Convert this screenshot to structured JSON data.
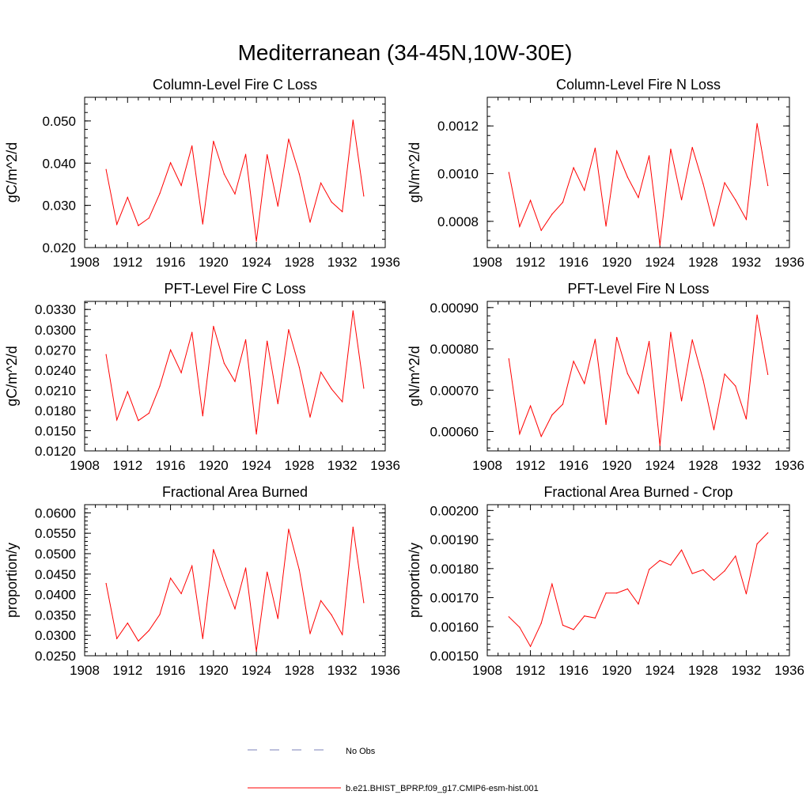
{
  "figure": {
    "title": "Mediterranean (34-45N,10W-30E)"
  },
  "legend": {
    "entries": [
      {
        "label": "No Obs",
        "color": "#7b80b8",
        "style": "dashed"
      },
      {
        "label": "b.e21.BHIST_BPRP.f09_g17.CMIP6-esm-hist.001",
        "color": "#ff0000",
        "style": "solid"
      }
    ]
  },
  "chart_data": [
    {
      "type": "line",
      "title": "Column-Level Fire C Loss",
      "ylabel": "gC/m^2/d",
      "xlim": [
        1908,
        1936
      ],
      "ylim": [
        0.02,
        0.0556
      ],
      "x_ticks": [
        "1908",
        "1912",
        "1916",
        "1920",
        "1924",
        "1928",
        "1932",
        "1936"
      ],
      "y_ticks": [
        {
          "v": 0.02,
          "label": "0.020"
        },
        {
          "v": 0.03,
          "label": "0.030"
        },
        {
          "v": 0.04,
          "label": "0.040"
        },
        {
          "v": 0.05,
          "label": "0.050"
        }
      ],
      "y_minor": 0.002,
      "x": [
        1910,
        1911,
        1912,
        1913,
        1914,
        1915,
        1916,
        1917,
        1918,
        1919,
        1920,
        1921,
        1922,
        1923,
        1924,
        1925,
        1926,
        1927,
        1928,
        1929,
        1930,
        1931,
        1932,
        1933,
        1934
      ],
      "series": [
        {
          "color": "#ff0000",
          "values": [
            0.0385,
            0.0255,
            0.0319,
            0.0252,
            0.027,
            0.0328,
            0.0401,
            0.0347,
            0.0441,
            0.0256,
            0.0452,
            0.0374,
            0.0327,
            0.0421,
            0.0215,
            0.042,
            0.0298,
            0.0457,
            0.0374,
            0.026,
            0.0353,
            0.0308,
            0.0285,
            0.0502,
            0.0322
          ]
        }
      ]
    },
    {
      "type": "line",
      "title": "Column-Level Fire N Loss",
      "ylabel": "gN/m^2/d",
      "xlim": [
        1908,
        1936
      ],
      "ylim": [
        0.00069,
        0.00132
      ],
      "x_ticks": [
        "1908",
        "1912",
        "1916",
        "1920",
        "1924",
        "1928",
        "1932",
        "1936"
      ],
      "y_ticks": [
        {
          "v": 0.0008,
          "label": "0.0008"
        },
        {
          "v": 0.001,
          "label": "0.0010"
        },
        {
          "v": 0.0012,
          "label": "0.0012"
        }
      ],
      "y_minor": 4e-05,
      "x": [
        1910,
        1911,
        1912,
        1913,
        1914,
        1915,
        1916,
        1917,
        1918,
        1919,
        1920,
        1921,
        1922,
        1923,
        1924,
        1925,
        1926,
        1927,
        1928,
        1929,
        1930,
        1931,
        1932,
        1933,
        1934
      ],
      "series": [
        {
          "color": "#ff0000",
          "values": [
            0.001005,
            0.000778,
            0.000888,
            0.000762,
            0.00083,
            0.00088,
            0.001025,
            0.00093,
            0.001107,
            0.00078,
            0.001095,
            0.000985,
            0.0009,
            0.001075,
            0.0007,
            0.001103,
            0.00089,
            0.00111,
            0.000958,
            0.00078,
            0.000962,
            0.00089,
            0.000808,
            0.00121,
            0.00095
          ]
        }
      ]
    },
    {
      "type": "line",
      "title": "PFT-Level Fire C Loss",
      "ylabel": "gC/m^2/d",
      "xlim": [
        1908,
        1936
      ],
      "ylim": [
        0.012,
        0.0342
      ],
      "x_ticks": [
        "1908",
        "1912",
        "1916",
        "1920",
        "1924",
        "1928",
        "1932",
        "1936"
      ],
      "y_ticks": [
        {
          "v": 0.012,
          "label": "0.0120"
        },
        {
          "v": 0.015,
          "label": "0.0150"
        },
        {
          "v": 0.018,
          "label": "0.0180"
        },
        {
          "v": 0.021,
          "label": "0.0210"
        },
        {
          "v": 0.024,
          "label": "0.0240"
        },
        {
          "v": 0.027,
          "label": "0.0270"
        },
        {
          "v": 0.03,
          "label": "0.0300"
        },
        {
          "v": 0.033,
          "label": "0.0330"
        }
      ],
      "y_minor": 0.001,
      "x": [
        1910,
        1911,
        1912,
        1913,
        1914,
        1915,
        1916,
        1917,
        1918,
        1919,
        1920,
        1921,
        1922,
        1923,
        1924,
        1925,
        1926,
        1927,
        1928,
        1929,
        1930,
        1931,
        1932,
        1933,
        1934
      ],
      "series": [
        {
          "color": "#ff0000",
          "values": [
            0.0263,
            0.0166,
            0.0208,
            0.0165,
            0.0176,
            0.0216,
            0.027,
            0.0236,
            0.0296,
            0.0172,
            0.0305,
            0.025,
            0.0223,
            0.0285,
            0.0145,
            0.0283,
            0.019,
            0.03,
            0.0244,
            0.017,
            0.0237,
            0.0212,
            0.0193,
            0.0328,
            0.0213
          ]
        }
      ]
    },
    {
      "type": "line",
      "title": "PFT-Level Fire N Loss",
      "ylabel": "gN/m^2/d",
      "xlim": [
        1908,
        1936
      ],
      "ylim": [
        0.000553,
        0.000915
      ],
      "x_ticks": [
        "1908",
        "1912",
        "1916",
        "1920",
        "1924",
        "1928",
        "1932",
        "1936"
      ],
      "y_ticks": [
        {
          "v": 0.0006,
          "label": "0.00060"
        },
        {
          "v": 0.0007,
          "label": "0.00070"
        },
        {
          "v": 0.0008,
          "label": "0.00080"
        },
        {
          "v": 0.0009,
          "label": "0.00090"
        }
      ],
      "y_minor": 2e-05,
      "x": [
        1910,
        1911,
        1912,
        1913,
        1914,
        1915,
        1916,
        1917,
        1918,
        1919,
        1920,
        1921,
        1922,
        1923,
        1924,
        1925,
        1926,
        1927,
        1928,
        1929,
        1930,
        1931,
        1932,
        1933,
        1934
      ],
      "series": [
        {
          "color": "#ff0000",
          "values": [
            0.000776,
            0.000594,
            0.000662,
            0.000588,
            0.00064,
            0.000666,
            0.00077,
            0.000716,
            0.000823,
            0.000617,
            0.000828,
            0.00074,
            0.000692,
            0.000818,
            0.000566,
            0.00084,
            0.000674,
            0.000822,
            0.000725,
            0.000604,
            0.000739,
            0.00071,
            0.00063,
            0.000882,
            0.000738
          ]
        }
      ]
    },
    {
      "type": "line",
      "title": "Fractional Area Burned",
      "ylabel": "proportion/y",
      "xlim": [
        1908,
        1936
      ],
      "ylim": [
        0.025,
        0.062
      ],
      "x_ticks": [
        "1908",
        "1912",
        "1916",
        "1920",
        "1924",
        "1928",
        "1932",
        "1936"
      ],
      "y_ticks": [
        {
          "v": 0.025,
          "label": "0.0250"
        },
        {
          "v": 0.03,
          "label": "0.0300"
        },
        {
          "v": 0.035,
          "label": "0.0350"
        },
        {
          "v": 0.04,
          "label": "0.0400"
        },
        {
          "v": 0.045,
          "label": "0.0450"
        },
        {
          "v": 0.05,
          "label": "0.0500"
        },
        {
          "v": 0.055,
          "label": "0.0550"
        },
        {
          "v": 0.06,
          "label": "0.0600"
        }
      ],
      "y_minor": 0.001,
      "x": [
        1910,
        1911,
        1912,
        1913,
        1914,
        1915,
        1916,
        1917,
        1918,
        1919,
        1920,
        1921,
        1922,
        1923,
        1924,
        1925,
        1926,
        1927,
        1928,
        1929,
        1930,
        1931,
        1932,
        1933,
        1934
      ],
      "series": [
        {
          "color": "#ff0000",
          "values": [
            0.0427,
            0.0292,
            0.033,
            0.0286,
            0.0312,
            0.0351,
            0.044,
            0.0402,
            0.047,
            0.0292,
            0.051,
            0.0435,
            0.0365,
            0.0465,
            0.0261,
            0.0455,
            0.0341,
            0.056,
            0.046,
            0.0304,
            0.0385,
            0.035,
            0.0302,
            0.0565,
            0.038
          ]
        }
      ]
    },
    {
      "type": "line",
      "title": "Fractional Area Burned - Crop",
      "ylabel": "proportion/y",
      "xlim": [
        1908,
        1936
      ],
      "ylim": [
        0.0015,
        0.00202
      ],
      "x_ticks": [
        "1908",
        "1912",
        "1916",
        "1920",
        "1924",
        "1928",
        "1932",
        "1936"
      ],
      "y_ticks": [
        {
          "v": 0.0015,
          "label": "0.00150"
        },
        {
          "v": 0.0016,
          "label": "0.00160"
        },
        {
          "v": 0.0017,
          "label": "0.00170"
        },
        {
          "v": 0.0018,
          "label": "0.00180"
        },
        {
          "v": 0.0019,
          "label": "0.00190"
        },
        {
          "v": 0.002,
          "label": "0.00200"
        }
      ],
      "y_minor": 2e-05,
      "x": [
        1910,
        1911,
        1912,
        1913,
        1914,
        1915,
        1916,
        1917,
        1918,
        1919,
        1920,
        1921,
        1922,
        1923,
        1924,
        1925,
        1926,
        1927,
        1928,
        1929,
        1930,
        1931,
        1932,
        1933,
        1934
      ],
      "series": [
        {
          "color": "#ff0000",
          "values": [
            0.001634,
            0.001598,
            0.001532,
            0.001612,
            0.001747,
            0.001605,
            0.00159,
            0.001637,
            0.00163,
            0.001716,
            0.001716,
            0.00173,
            0.001678,
            0.001797,
            0.001828,
            0.001812,
            0.001864,
            0.001783,
            0.001796,
            0.00176,
            0.001792,
            0.001843,
            0.001713,
            0.001885,
            0.001923
          ]
        }
      ]
    }
  ]
}
